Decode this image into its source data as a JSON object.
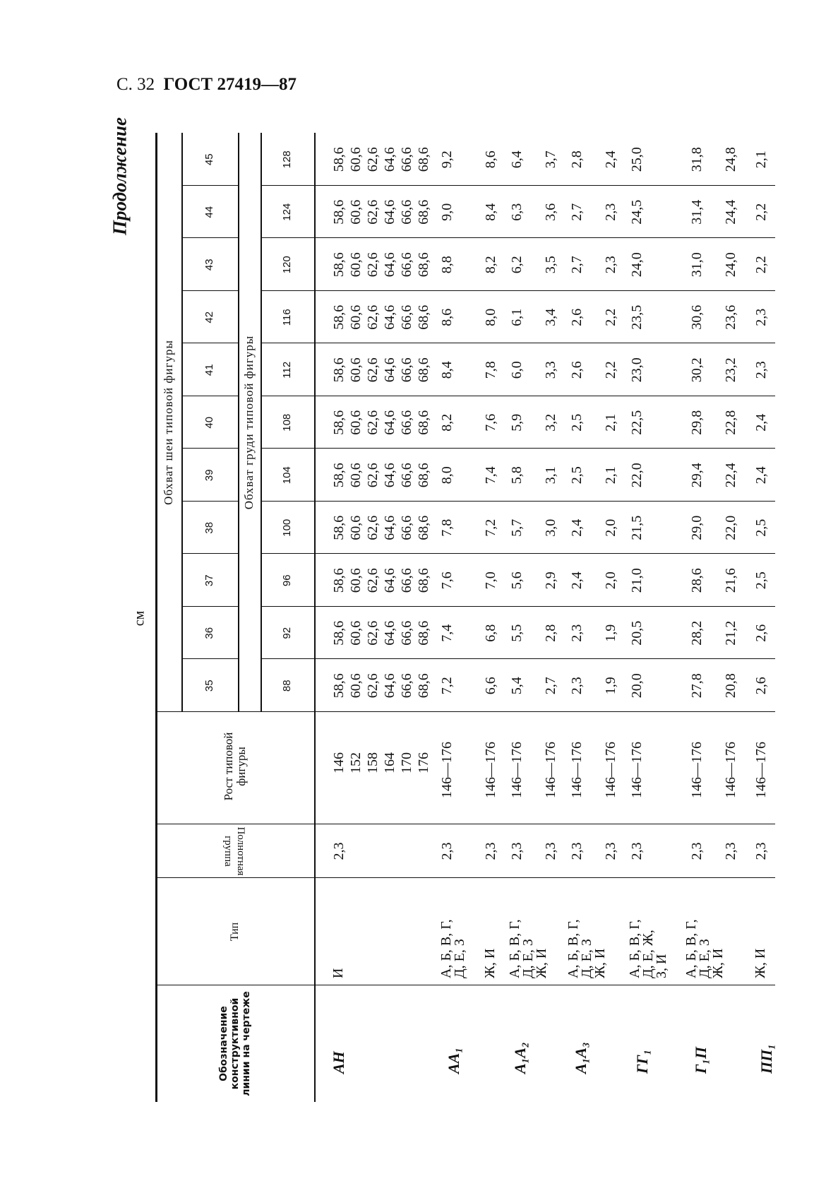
{
  "header": {
    "page_label": "С. 32",
    "doc_title": "ГОСТ 27419—87"
  },
  "continuation": "Продолжение",
  "unit": "см",
  "table": {
    "col_headers": {
      "designation": "Обозначение конструктивной линии на чертеже",
      "type": "Тип",
      "fullness_group": "Полнотная группа",
      "height": "Рост типовой фигуры",
      "neck_title": "Обхват шеи типовой фигуры",
      "chest_title": "Обхват груди типовой фигуры"
    },
    "neck": [
      "35",
      "36",
      "37",
      "38",
      "39",
      "40",
      "41",
      "42",
      "43",
      "44",
      "45"
    ],
    "chest": [
      "88",
      "92",
      "96",
      "100",
      "104",
      "108",
      "112",
      "116",
      "120",
      "124",
      "128"
    ],
    "groups": [
      {
        "designation": "АН",
        "types": [
          "И"
        ],
        "rows": [
          {
            "group": "2,3",
            "height": [
              "146",
              "152",
              "158",
              "164",
              "170",
              "176"
            ],
            "values": [
              [
                "58,6",
                "60,6",
                "62,6",
                "64,6",
                "66,6",
                "68,6"
              ],
              [
                "58,6",
                "60,6",
                "62,6",
                "64,6",
                "66,6",
                "68,6"
              ],
              [
                "58,6",
                "60,6",
                "62,6",
                "64,6",
                "66,6",
                "68,6"
              ],
              [
                "58,6",
                "60,6",
                "62,6",
                "64,6",
                "66,6",
                "68,6"
              ],
              [
                "58,6",
                "60,6",
                "62,6",
                "64,6",
                "66,6",
                "68,6"
              ],
              [
                "58,6",
                "60,6",
                "62,6",
                "64,6",
                "66,6",
                "68,6"
              ],
              [
                "58,6",
                "60,6",
                "62,6",
                "64,6",
                "66,6",
                "68,6"
              ],
              [
                "58,6",
                "60,6",
                "62,6",
                "64,6",
                "66,6",
                "68,6"
              ],
              [
                "58,6",
                "60,6",
                "62,6",
                "64,6",
                "66,6",
                "68,6"
              ],
              [
                "58,6",
                "60,6",
                "62,6",
                "64,6",
                "66,6",
                "68,6"
              ],
              [
                "58,6",
                "60,6",
                "62,6",
                "64,6",
                "66,6",
                "68,6"
              ]
            ]
          }
        ]
      },
      {
        "designation": "АА₁",
        "types": [
          "А, Б, В, Г,\nД, Е, З",
          "Ж, И"
        ],
        "rows": [
          {
            "group": "2,3",
            "height": [
              "146—176"
            ],
            "values": [
              "7,2",
              "7,4",
              "7,6",
              "7,8",
              "8,0",
              "8,2",
              "8,4",
              "8,6",
              "8,8",
              "9,0",
              "9,2"
            ]
          },
          {
            "group": "2,3",
            "height": [
              "146—176"
            ],
            "values": [
              "6,6",
              "6,8",
              "7,0",
              "7,2",
              "7,4",
              "7,6",
              "7,8",
              "8,0",
              "8,2",
              "8,4",
              "8,6"
            ]
          }
        ]
      },
      {
        "designation": "А₁А₂",
        "types": [
          "А, Б, В, Г,\nД, Е, З\nЖ, И"
        ],
        "rows": [
          {
            "group": "2,3",
            "height": [
              "146—176"
            ],
            "values": [
              "5,4",
              "5,5",
              "5,6",
              "5,7",
              "5,8",
              "5,9",
              "6,0",
              "6,1",
              "6,2",
              "6,3",
              "6,4"
            ]
          }
        ]
      },
      {
        "designation": "А₁А₃",
        "types": [
          "А, Б, В, Г,\nД, Е, З\nЖ, И"
        ],
        "rows": [
          {
            "group": "2,3",
            "height": [
              "146—176"
            ],
            "values": [
              "2,7",
              "2,8",
              "2,9",
              "3,0",
              "3,1",
              "3,2",
              "3,3",
              "3,4",
              "3,5",
              "3,6",
              "3,7"
            ]
          },
          {
            "group": "2,3",
            "height": [
              "146—176"
            ],
            "values": [
              "2,3",
              "2,3",
              "2,4",
              "2,4",
              "2,5",
              "2,5",
              "2,6",
              "2,6",
              "2,7",
              "2,7",
              "2,8"
            ]
          }
        ]
      },
      {
        "designation": "ГГ₁",
        "types": [
          "А, Б, В, Г,\nД, Е, Ж,\nЗ, И"
        ],
        "rows": [
          {
            "group": "2,3",
            "height": [
              "146—176"
            ],
            "values": [
              "1,9",
              "1,9",
              "2,0",
              "2,0",
              "2,1",
              "2,1",
              "2,2",
              "2,2",
              "2,3",
              "2,3",
              "2,4"
            ]
          },
          {
            "group": "2,3",
            "height": [
              "146—176"
            ],
            "values": [
              "20,0",
              "20,5",
              "21,0",
              "21,5",
              "22,0",
              "22,5",
              "23,0",
              "23,5",
              "24,0",
              "24,5",
              "25,0"
            ]
          }
        ]
      },
      {
        "designation": "Г₁П",
        "types": [
          "А, Б, В, Г,\nД, Е, З\nЖ, И"
        ],
        "rows": [
          {
            "group": "2,3",
            "height": [
              "146—176"
            ],
            "values": [
              "27,8",
              "28,2",
              "28,6",
              "29,0",
              "29,4",
              "29,8",
              "30,2",
              "30,6",
              "31,0",
              "31,4",
              "31,8"
            ]
          },
          {
            "group": "2,3",
            "height": [
              "146—176"
            ],
            "values": [
              "20,8",
              "21,2",
              "21,6",
              "22,0",
              "22,4",
              "22,8",
              "23,2",
              "23,6",
              "24,0",
              "24,4",
              "24,8"
            ]
          }
        ]
      },
      {
        "designation": "ПП₁",
        "types": [
          "Ж, И"
        ],
        "rows": [
          {
            "group": "2,3",
            "height": [
              "146—176"
            ],
            "values": [
              "2,6",
              "2,6",
              "2,5",
              "2,5",
              "2,4",
              "2,4",
              "2,3",
              "2,3",
              "2,2",
              "2,2",
              "2,1"
            ]
          }
        ]
      }
    ]
  }
}
